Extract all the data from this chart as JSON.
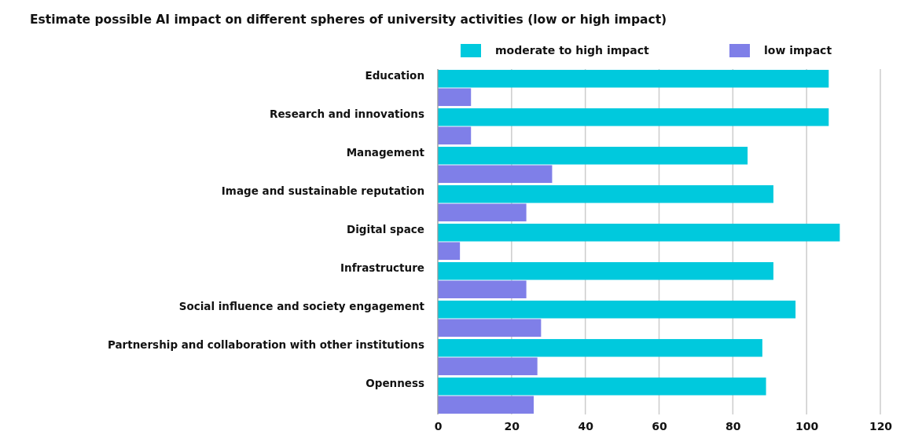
{
  "chart_data": {
    "type": "bar",
    "orientation": "horizontal",
    "title": "Estimate possible AI impact on different spheres of university activities (low or high impact)",
    "categories": [
      "Education",
      "Research and innovations",
      "Management",
      "Image and sustainable reputation",
      "Digital space",
      "Infrastructure",
      "Social influence and society engagement",
      "Partnership and collaboration with other institutions",
      "Openness"
    ],
    "series": [
      {
        "name": "moderate to high impact",
        "color": "#00c9dd",
        "values": [
          106,
          106,
          84,
          91,
          109,
          91,
          97,
          88,
          89
        ]
      },
      {
        "name": "low impact",
        "color": "#7f7fe8",
        "values": [
          9,
          9,
          31,
          24,
          6,
          24,
          28,
          27,
          26
        ]
      }
    ],
    "xlim": [
      0,
      120
    ],
    "xticks": [
      0,
      20,
      40,
      60,
      80,
      100,
      120
    ],
    "grid": "x",
    "legend": "top right"
  }
}
